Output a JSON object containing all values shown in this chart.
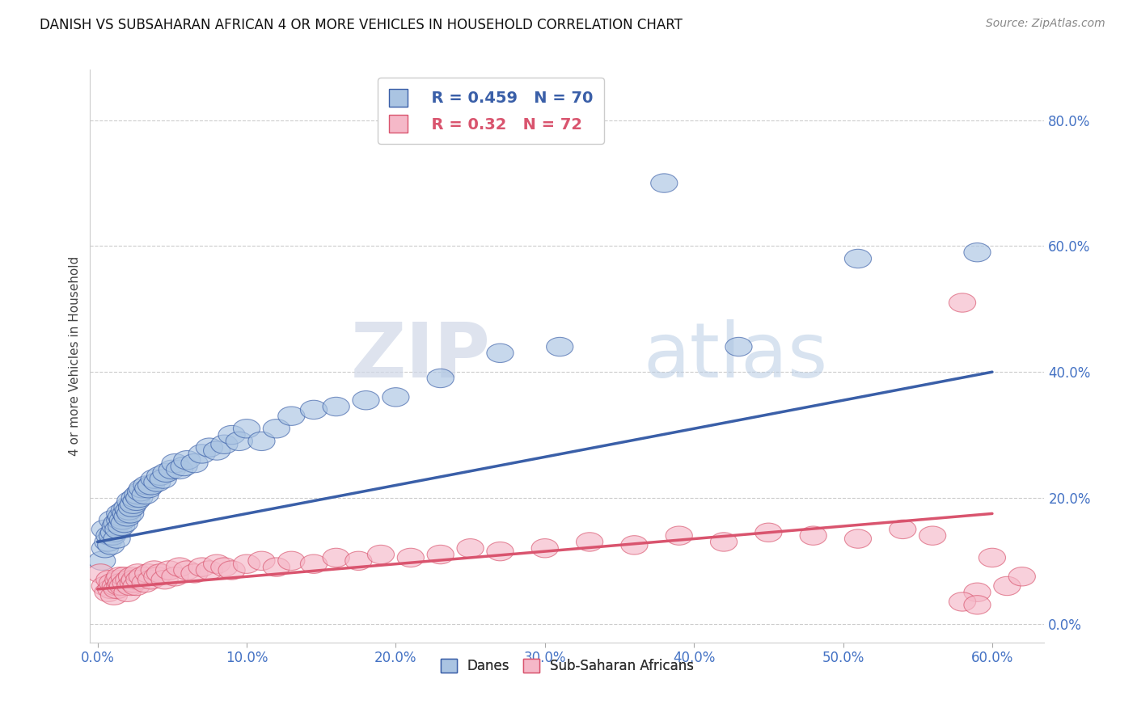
{
  "title": "DANISH VS SUBSAHARAN AFRICAN 4 OR MORE VEHICLES IN HOUSEHOLD CORRELATION CHART",
  "source": "Source: ZipAtlas.com",
  "xlabel_ticks": [
    "0.0%",
    "10.0%",
    "20.0%",
    "30.0%",
    "40.0%",
    "50.0%",
    "60.0%"
  ],
  "ylabel_ticks": [
    "0.0%",
    "20.0%",
    "40.0%",
    "60.0%",
    "80.0%"
  ],
  "xlim": [
    -0.005,
    0.635
  ],
  "ylim": [
    -0.03,
    0.88
  ],
  "danish_R": 0.459,
  "danish_N": 70,
  "subsaharan_R": 0.32,
  "subsaharan_N": 72,
  "danish_color": "#aac4e2",
  "danish_line_color": "#3a5fa8",
  "subsaharan_color": "#f5b8c8",
  "subsaharan_line_color": "#d9546e",
  "legend_label_danish": "Danes",
  "legend_label_subsaharan": "Sub-Saharan Africans",
  "ylabel": "4 or more Vehicles in Household",
  "watermark_zip": "ZIP",
  "watermark_atlas": "atlas",
  "danish_line_start_y": 0.13,
  "danish_line_end_y": 0.4,
  "subsaharan_line_start_y": 0.055,
  "subsaharan_line_end_y": 0.175,
  "danish_x": [
    0.003,
    0.005,
    0.005,
    0.007,
    0.008,
    0.009,
    0.01,
    0.01,
    0.011,
    0.012,
    0.013,
    0.013,
    0.014,
    0.015,
    0.015,
    0.016,
    0.016,
    0.017,
    0.018,
    0.018,
    0.019,
    0.02,
    0.02,
    0.021,
    0.022,
    0.022,
    0.023,
    0.024,
    0.025,
    0.026,
    0.027,
    0.028,
    0.029,
    0.03,
    0.032,
    0.033,
    0.034,
    0.036,
    0.038,
    0.04,
    0.042,
    0.044,
    0.046,
    0.05,
    0.052,
    0.055,
    0.058,
    0.06,
    0.065,
    0.07,
    0.075,
    0.08,
    0.085,
    0.09,
    0.095,
    0.1,
    0.11,
    0.12,
    0.13,
    0.145,
    0.16,
    0.18,
    0.2,
    0.23,
    0.27,
    0.31,
    0.38,
    0.43,
    0.51,
    0.59
  ],
  "danish_y": [
    0.1,
    0.12,
    0.15,
    0.13,
    0.14,
    0.125,
    0.14,
    0.165,
    0.145,
    0.155,
    0.135,
    0.16,
    0.15,
    0.165,
    0.175,
    0.155,
    0.17,
    0.165,
    0.16,
    0.18,
    0.175,
    0.17,
    0.185,
    0.18,
    0.175,
    0.195,
    0.185,
    0.19,
    0.2,
    0.195,
    0.205,
    0.2,
    0.21,
    0.215,
    0.205,
    0.22,
    0.215,
    0.22,
    0.23,
    0.225,
    0.235,
    0.23,
    0.24,
    0.245,
    0.255,
    0.245,
    0.25,
    0.26,
    0.255,
    0.27,
    0.28,
    0.275,
    0.285,
    0.3,
    0.29,
    0.31,
    0.29,
    0.31,
    0.33,
    0.34,
    0.345,
    0.355,
    0.36,
    0.39,
    0.43,
    0.44,
    0.7,
    0.44,
    0.58,
    0.59
  ],
  "subsaharan_x": [
    0.002,
    0.005,
    0.007,
    0.008,
    0.009,
    0.01,
    0.011,
    0.012,
    0.013,
    0.014,
    0.015,
    0.015,
    0.016,
    0.017,
    0.018,
    0.019,
    0.02,
    0.021,
    0.022,
    0.023,
    0.024,
    0.025,
    0.026,
    0.027,
    0.028,
    0.03,
    0.032,
    0.034,
    0.036,
    0.038,
    0.04,
    0.042,
    0.045,
    0.048,
    0.052,
    0.055,
    0.06,
    0.065,
    0.07,
    0.075,
    0.08,
    0.085,
    0.09,
    0.1,
    0.11,
    0.12,
    0.13,
    0.145,
    0.16,
    0.175,
    0.19,
    0.21,
    0.23,
    0.25,
    0.27,
    0.3,
    0.33,
    0.36,
    0.39,
    0.42,
    0.45,
    0.48,
    0.51,
    0.54,
    0.56,
    0.58,
    0.59,
    0.6,
    0.61,
    0.62,
    0.58,
    0.59
  ],
  "subsaharan_y": [
    0.08,
    0.06,
    0.05,
    0.07,
    0.055,
    0.065,
    0.045,
    0.06,
    0.055,
    0.07,
    0.06,
    0.075,
    0.065,
    0.06,
    0.075,
    0.065,
    0.05,
    0.07,
    0.06,
    0.075,
    0.065,
    0.07,
    0.06,
    0.08,
    0.07,
    0.075,
    0.065,
    0.08,
    0.07,
    0.085,
    0.075,
    0.08,
    0.07,
    0.085,
    0.075,
    0.09,
    0.085,
    0.08,
    0.09,
    0.085,
    0.095,
    0.09,
    0.085,
    0.095,
    0.1,
    0.09,
    0.1,
    0.095,
    0.105,
    0.1,
    0.11,
    0.105,
    0.11,
    0.12,
    0.115,
    0.12,
    0.13,
    0.125,
    0.14,
    0.13,
    0.145,
    0.14,
    0.135,
    0.15,
    0.14,
    0.51,
    0.05,
    0.105,
    0.06,
    0.075,
    0.035,
    0.03
  ]
}
